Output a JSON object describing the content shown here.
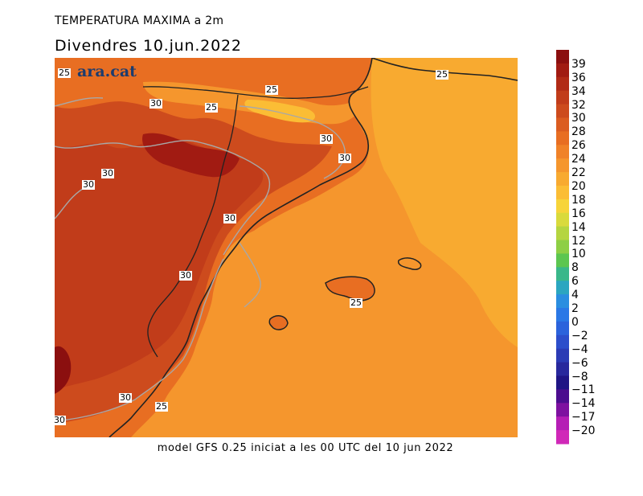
{
  "header": {
    "title": "TEMPERATURA MAXIMA a 2m",
    "subtitle": "Divendres  10.jun.2022"
  },
  "footer": {
    "text": "model GFS 0.25 iniciat a les 00 UTC del 10 jun 2022"
  },
  "logo": {
    "text": "ara.cat"
  },
  "colorbar": {
    "labels": [
      "39",
      "36",
      "34",
      "32",
      "30",
      "28",
      "26",
      "24",
      "22",
      "20",
      "18",
      "16",
      "14",
      "12",
      "10",
      "8",
      "6",
      "4",
      "2",
      "0",
      "−2",
      "−4",
      "−6",
      "−8",
      "−11",
      "−14",
      "−17",
      "−20"
    ],
    "colors": [
      "#8b0f0f",
      "#a11b12",
      "#b12a16",
      "#c13c1a",
      "#cd4b1d",
      "#db5c20",
      "#e86e22",
      "#f08228",
      "#f5962d",
      "#f8aa30",
      "#fbbd35",
      "#f7d43a",
      "#d9da3c",
      "#b5d540",
      "#8ecf45",
      "#5cc650",
      "#3ab78a",
      "#2ba6c0",
      "#2a8ee0",
      "#2a78e6",
      "#2b63dc",
      "#2c4ecb",
      "#2b3bb5",
      "#28289d",
      "#1f1585",
      "#4c0d8f",
      "#7e11a0",
      "#b51eb5",
      "#d028b8"
    ]
  },
  "map_labels": [
    {
      "text": "25"
    },
    {
      "text": "30"
    },
    {
      "text": "25"
    },
    {
      "text": "25"
    },
    {
      "text": "25"
    },
    {
      "text": "30"
    },
    {
      "text": "30"
    },
    {
      "text": "30"
    },
    {
      "text": "30"
    },
    {
      "text": "30"
    },
    {
      "text": "30"
    },
    {
      "text": "25"
    },
    {
      "text": "30"
    },
    {
      "text": "25"
    },
    {
      "text": "30"
    }
  ]
}
